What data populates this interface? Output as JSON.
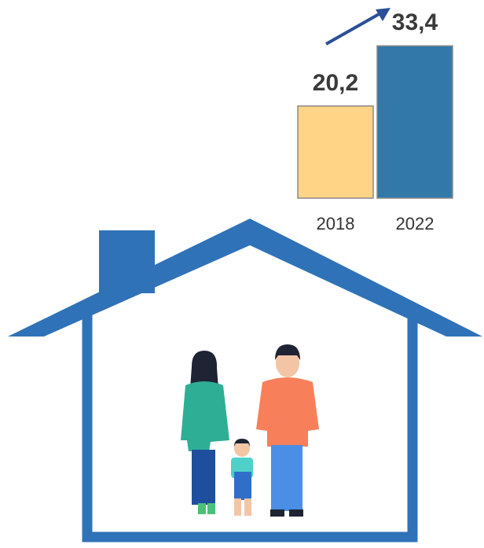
{
  "chart_data": {
    "type": "bar",
    "categories": [
      "2018",
      "2022"
    ],
    "values": [
      20.2,
      33.4
    ],
    "value_labels": [
      "20,2",
      "33,4"
    ],
    "colors": [
      "#ffd486",
      "#3279aa"
    ]
  }
}
